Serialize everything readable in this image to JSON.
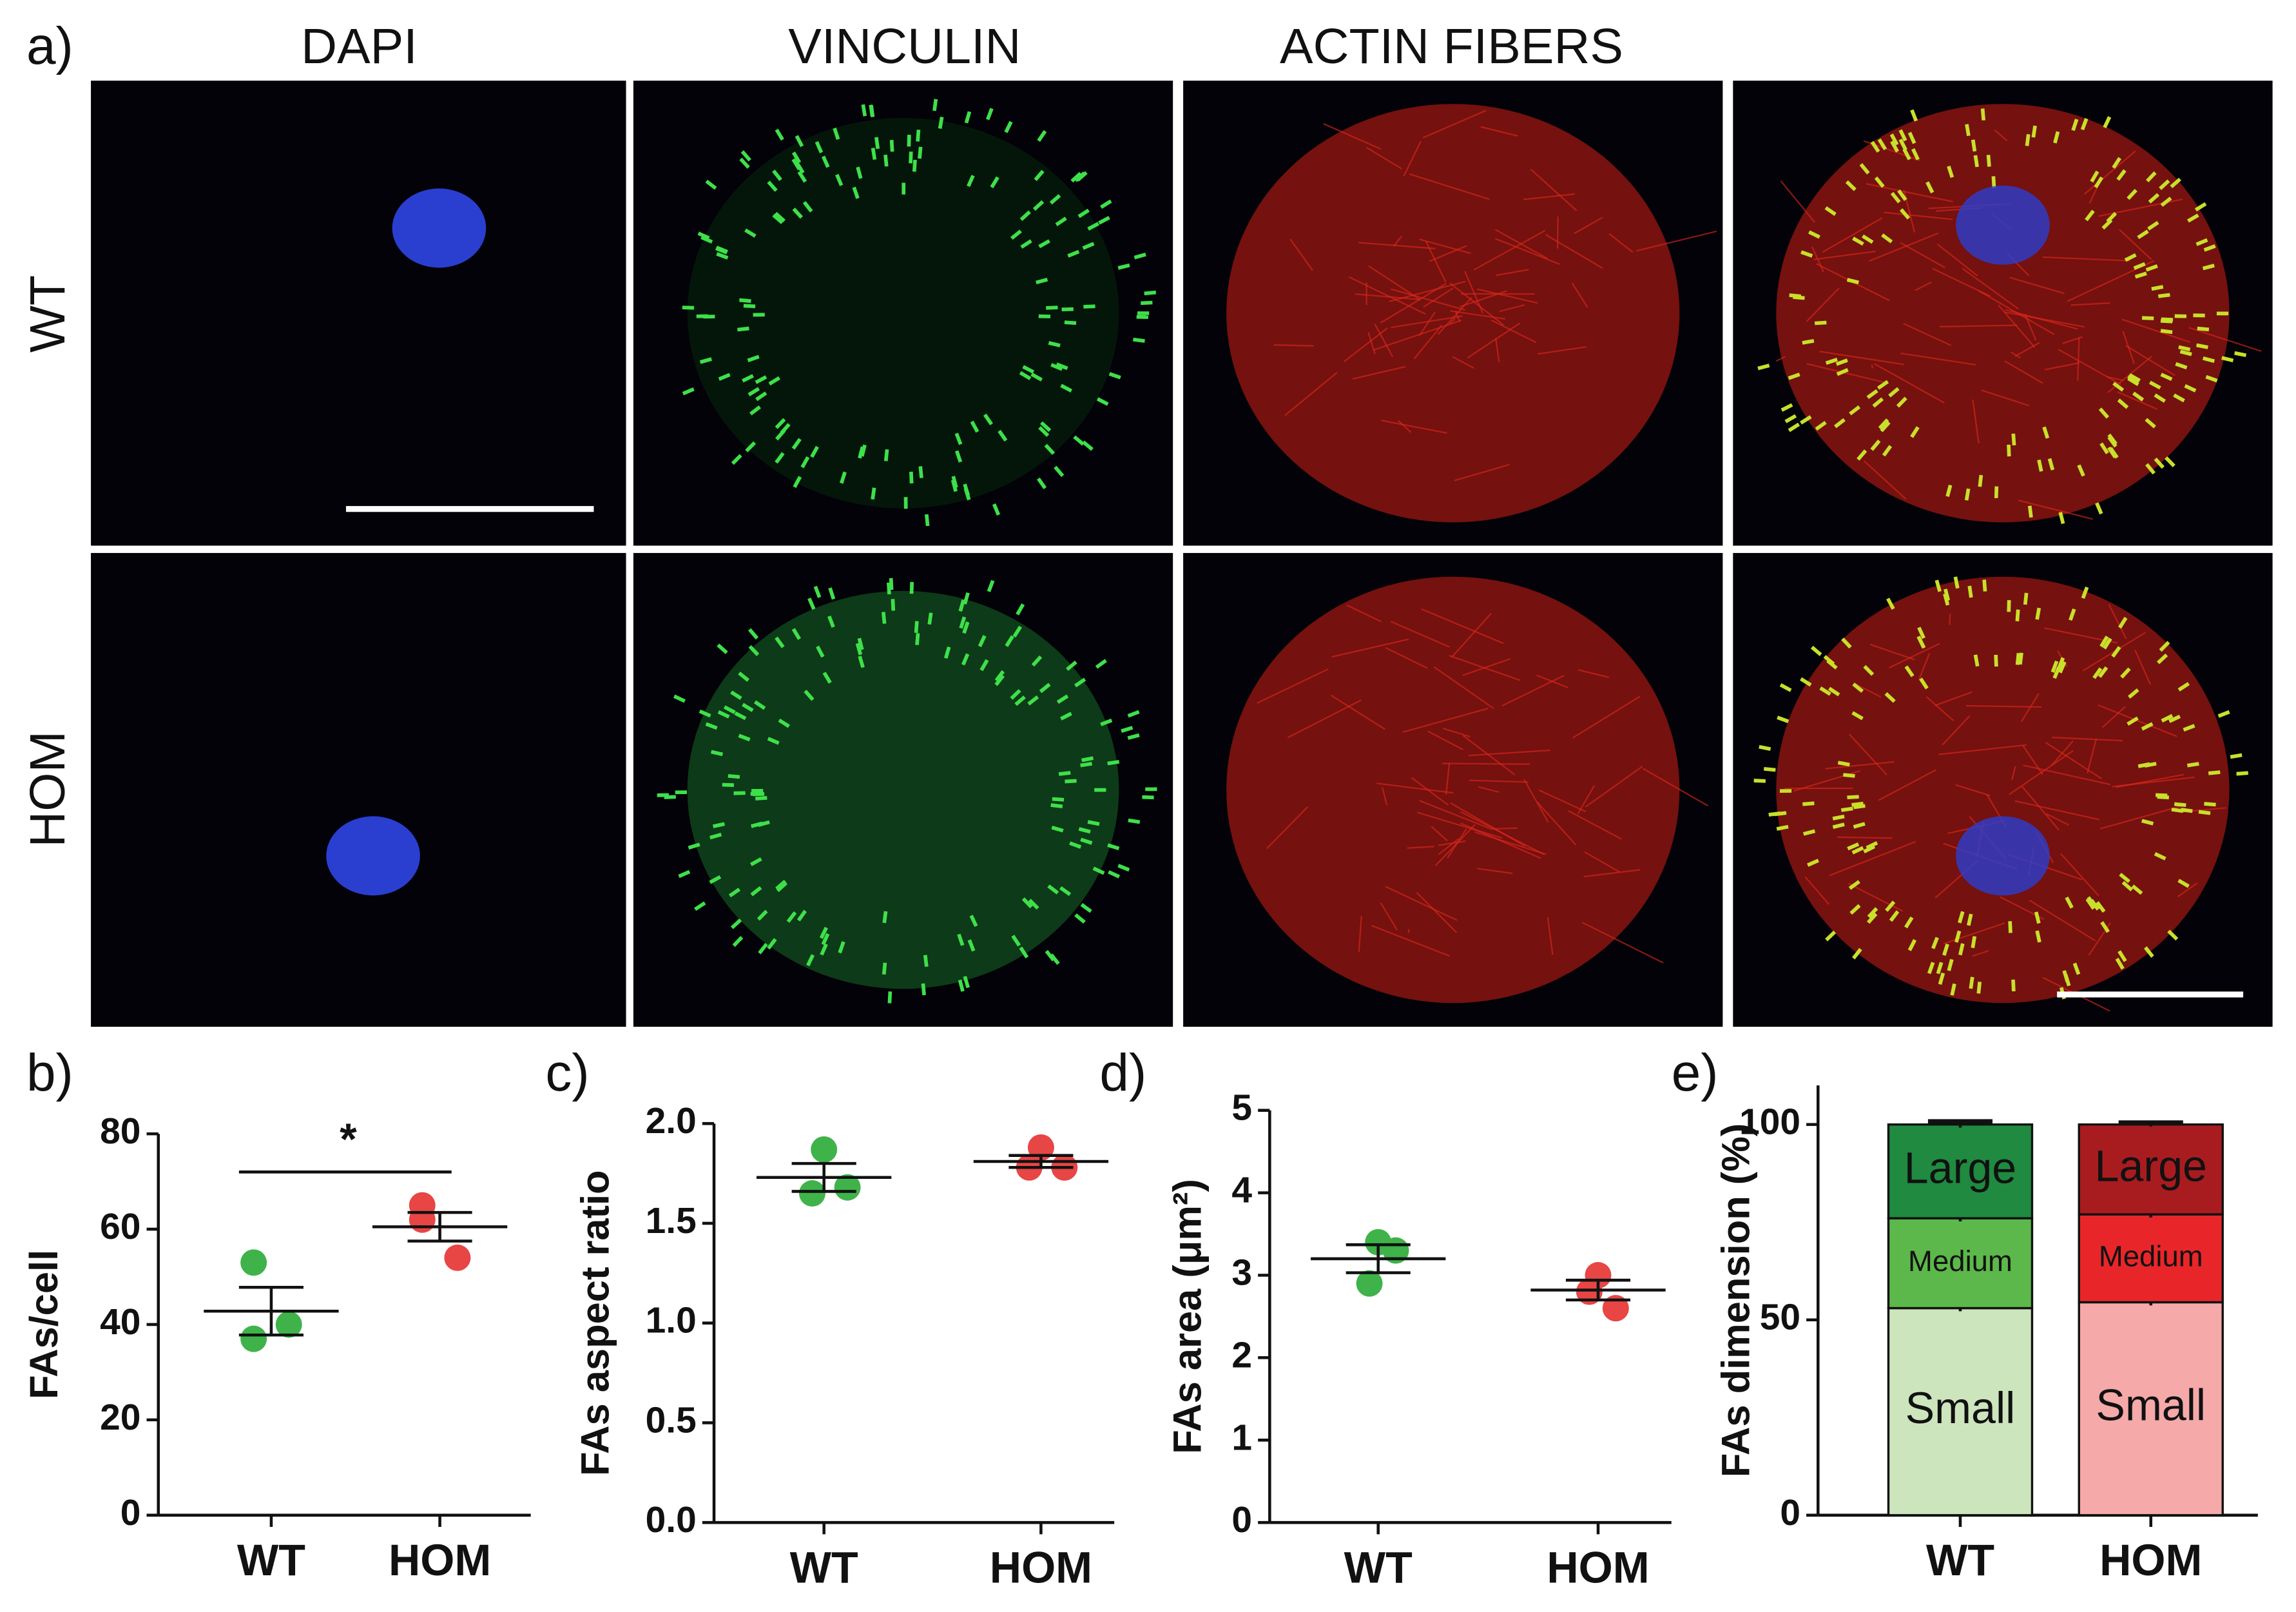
{
  "figure": {
    "panel": "a)",
    "column_titles": [
      "DAPI",
      "VINCULIN",
      "ACTIN FIBERS"
    ],
    "row_labels": [
      "WT",
      "HOM"
    ]
  },
  "chart_data": [
    {
      "type": "dot",
      "panel": "b)",
      "ylabel": "FAs/cell",
      "categories": [
        "WT",
        "HOM"
      ],
      "colors": [
        "#3fb34a",
        "#e84545"
      ],
      "points": [
        [
          53,
          37,
          40
        ],
        [
          65,
          62,
          54
        ]
      ],
      "means": [
        42.8,
        60.5
      ],
      "errors": [
        5,
        3
      ],
      "significance": {
        "label": "*",
        "y": 72
      },
      "ylim": [
        0,
        80
      ],
      "yticks": [
        0,
        20,
        40,
        60,
        80
      ]
    },
    {
      "type": "dot",
      "panel": "c)",
      "ylabel": "FAs aspect ratio",
      "categories": [
        "WT",
        "HOM"
      ],
      "colors": [
        "#3fb34a",
        "#e84545"
      ],
      "points": [
        [
          1.87,
          1.65,
          1.68
        ],
        [
          1.88,
          1.78,
          1.78
        ]
      ],
      "means": [
        1.73,
        1.81
      ],
      "errors": [
        0.07,
        0.03
      ],
      "ylim": [
        0,
        2.0
      ],
      "yticks": [
        {
          "value": 0,
          "label": "0.0"
        },
        {
          "value": 0.5,
          "label": "0.5"
        },
        {
          "value": 1,
          "label": "1.0"
        },
        {
          "value": 1.5,
          "label": "1.5"
        },
        {
          "value": 2,
          "label": "2.0"
        }
      ]
    },
    {
      "type": "dot",
      "panel": "d)",
      "ylabel": "FAs area (μm²)",
      "categories": [
        "WT",
        "HOM"
      ],
      "colors": [
        "#3fb34a",
        "#e84545"
      ],
      "points": [
        [
          3.4,
          3.3,
          2.9
        ],
        [
          3.0,
          2.6,
          2.8
        ]
      ],
      "means": [
        3.2,
        2.82
      ],
      "errors": [
        0.17,
        0.12
      ],
      "ylim": [
        0,
        5
      ],
      "yticks": [
        0,
        1,
        2,
        3,
        4,
        5
      ]
    },
    {
      "type": "stacked-bar",
      "panel": "e)",
      "ylabel": "FAs dimension (%)",
      "categories": [
        "WT",
        "HOM"
      ],
      "series": [
        {
          "name": "Small",
          "colors": [
            "#cde5bd",
            "#f5a9a9"
          ],
          "values": [
            53,
            54.5
          ],
          "errors": [
            0.8,
            0.8
          ]
        },
        {
          "name": "Medium",
          "colors": [
            "#5cb84a",
            "#e8262a"
          ],
          "values": [
            23,
            22.5
          ],
          "errors": [
            0.8,
            0.8
          ]
        },
        {
          "name": "Large",
          "colors": [
            "#1f8a40",
            "#a81c20"
          ],
          "values": [
            24,
            23
          ],
          "errors": [
            0.8,
            0.5
          ]
        }
      ],
      "ylim": [
        0,
        110
      ],
      "yticks": [
        0,
        50,
        100
      ]
    }
  ]
}
